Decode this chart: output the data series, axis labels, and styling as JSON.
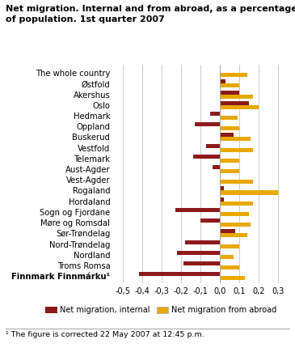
{
  "title": "Net migration. Internal and from abroad, as a percentage\nof population. 1st quarter 2007",
  "categories": [
    "The whole country",
    "Østfold",
    "Akershus",
    "Oslo",
    "Hedmark",
    "Oppland",
    "Buskerud",
    "Vestfold",
    "Telemark",
    "Aust-Agder",
    "Vest-Agder",
    "Rogaland",
    "Hordaland",
    "Sogn og Fjordane",
    "Møre og Romsdal",
    "Sør-Trøndelag",
    "Nord-Trøndelag",
    "Nordland",
    "Troms Romsa",
    "Finnmark Finnmárku¹"
  ],
  "internal": [
    0.0,
    0.03,
    0.1,
    0.15,
    -0.05,
    -0.13,
    0.07,
    -0.07,
    -0.14,
    -0.04,
    0.0,
    0.02,
    0.02,
    -0.23,
    -0.1,
    0.08,
    -0.18,
    -0.22,
    -0.19,
    -0.42
  ],
  "abroad": [
    0.14,
    0.1,
    0.17,
    0.2,
    0.09,
    0.1,
    0.16,
    0.17,
    0.1,
    0.1,
    0.17,
    0.3,
    0.17,
    0.15,
    0.16,
    0.14,
    0.1,
    0.07,
    0.1,
    0.13
  ],
  "color_internal": "#8B1A1A",
  "color_abroad": "#E8A800",
  "xlim": [
    -0.55,
    0.35
  ],
  "xticks": [
    -0.5,
    -0.4,
    -0.3,
    -0.2,
    -0.1,
    0.0,
    0.1,
    0.2,
    0.3
  ],
  "xtick_labels": [
    "-0,5",
    "-0,4",
    "-0,3",
    "-0,2",
    "-0,1",
    "0,0",
    "0,1",
    "0,2",
    "0,3"
  ],
  "legend_internal": "Net migration, internal",
  "legend_abroad": "Net migration from abroad",
  "footnote": "¹ The figure is corrected 22 May 2007 at 12:45 p.m.",
  "bg_color": "#ffffff",
  "grid_color": "#cccccc"
}
